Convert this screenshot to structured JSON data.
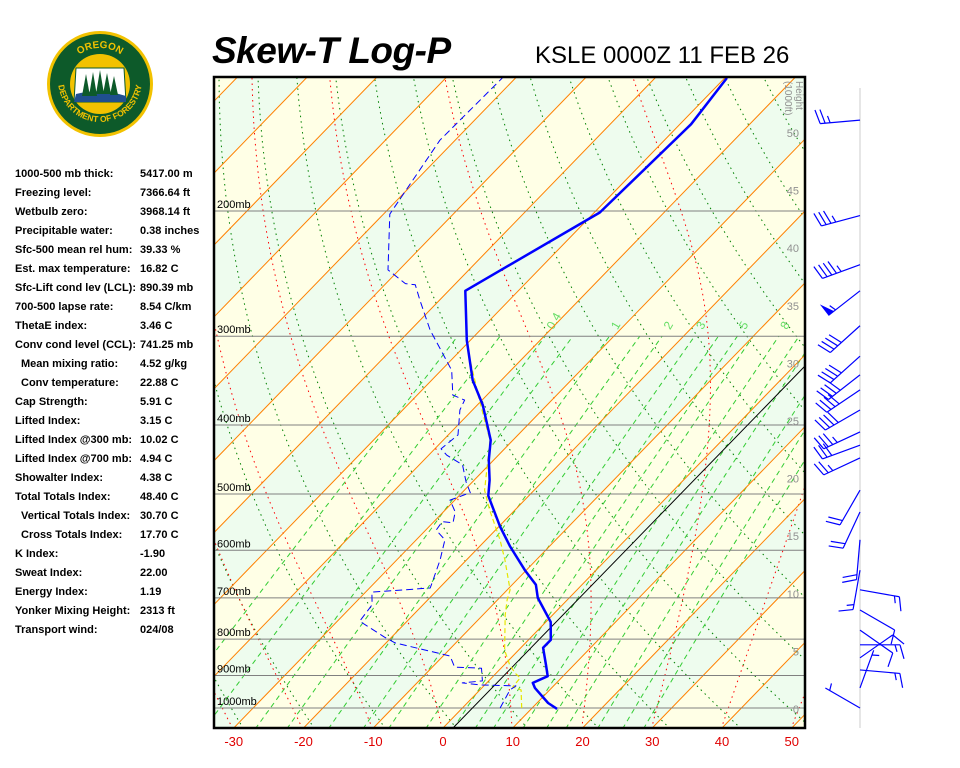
{
  "header": {
    "title": "Skew-T Log-P",
    "subtitle": "KSLE 0000Z 11 FEB 26"
  },
  "logo": {
    "top_text": "OREGON",
    "bottom_text": "DEPARTMENT OF FORESTRY",
    "colors": {
      "ring": "#f2c200",
      "field": "#0d5a2a",
      "sky": "#ffffff",
      "water": "#1f4f8f"
    }
  },
  "stats": [
    {
      "label": "1000-500 mb thick:",
      "value": "5417.00 m"
    },
    {
      "label": "Freezing level:",
      "value": "7366.64 ft"
    },
    {
      "label": "Wetbulb zero:",
      "value": "3968.14 ft"
    },
    {
      "label": "Precipitable water:",
      "value": "0.38 inches"
    },
    {
      "label": "Sfc-500 mean rel hum:",
      "value": "39.33 %"
    },
    {
      "label": "Est. max temperature:",
      "value": "16.82 C"
    },
    {
      "label": "Sfc-Lift cond lev (LCL):",
      "value": "890.39 mb"
    },
    {
      "label": "700-500 lapse rate:",
      "value": "8.54 C/km"
    },
    {
      "label": "ThetaE index:",
      "value": "3.46 C"
    },
    {
      "label": "Conv cond level (CCL):",
      "value": "741.25 mb"
    },
    {
      "label": "Mean mixing ratio:",
      "value": "4.52 g/kg",
      "sub": true
    },
    {
      "label": "Conv temperature:",
      "value": "22.88 C",
      "sub": true
    },
    {
      "label": "Cap Strength:",
      "value": "5.91 C"
    },
    {
      "label": "Lifted Index:",
      "value": "3.15 C"
    },
    {
      "label": "Lifted Index @300 mb:",
      "value": "10.02 C"
    },
    {
      "label": "Lifted Index @700 mb:",
      "value": "4.94 C"
    },
    {
      "label": "Showalter Index:",
      "value": "4.38 C"
    },
    {
      "label": "Total Totals Index:",
      "value": "48.40 C"
    },
    {
      "label": "Vertical Totals Index:",
      "value": "30.70 C",
      "sub": true
    },
    {
      "label": "Cross Totals Index:",
      "value": "17.70 C",
      "sub": true
    },
    {
      "label": "K Index:",
      "value": "-1.90"
    },
    {
      "label": "Sweat Index:",
      "value": "22.00"
    },
    {
      "label": "Energy Index:",
      "value": "1.19"
    },
    {
      "label": "Yonker Mixing Height:",
      "value": "2313 ft"
    },
    {
      "label": "Transport wind:",
      "value": "024/08"
    }
  ],
  "chart_data": {
    "type": "skew-t log-p",
    "xlabel": "",
    "ylabel": "",
    "x_ticks": [
      -30,
      -20,
      -10,
      0,
      10,
      20,
      30,
      40,
      50
    ],
    "x_tick_labels": [
      "-30",
      "-20",
      "-10",
      "0",
      "10",
      "20",
      "30",
      "40",
      "50"
    ],
    "pressure_levels": [
      200,
      300,
      400,
      500,
      600,
      700,
      800,
      900,
      1000
    ],
    "pressure_labels": [
      "200mb",
      "300mb",
      "400mb",
      "500mb",
      "600mb",
      "700mb",
      "800mb",
      "900mb",
      "1000mb"
    ],
    "pressure_range_mb": [
      1067,
      129
    ],
    "height_axis": {
      "label_line1": "Height",
      "label_line2": "(1000ft)",
      "ticks": [
        "0",
        "5",
        "10",
        "15",
        "20",
        "25",
        "30",
        "35",
        "40",
        "45",
        "50"
      ]
    },
    "mixing_ratio_labels": [
      "0.4",
      "1",
      "2",
      "3",
      "5",
      "8"
    ],
    "mixing_ratio_values": [
      0.4,
      1,
      2,
      3,
      5,
      8
    ],
    "colors": {
      "temperature": "#0000ff",
      "dewpoint": "#0000ff",
      "wetbulb": "#e6e600",
      "isotherm": "#ff8000",
      "dry_adiabat": "#008000",
      "moist_adiabat": "#ff0000",
      "mixing_ratio": "#33cc33",
      "band_a": "#ffffe6",
      "band_b": "#eefcee",
      "x_tick": "#e00000",
      "wind": "#0000ff"
    },
    "series": [
      {
        "key": "temperature",
        "style": "solid",
        "points": [
          [
            1003,
            13.7
          ],
          [
            984,
            11.6
          ],
          [
            937,
            7.6
          ],
          [
            922,
            6.6
          ],
          [
            902,
            7.8
          ],
          [
            870,
            6.0
          ],
          [
            823,
            3.2
          ],
          [
            802,
            3.2
          ],
          [
            757,
            0.7
          ],
          [
            700,
            -4.5
          ],
          [
            671,
            -6.6
          ],
          [
            640,
            -10.2
          ],
          [
            592,
            -15.7
          ],
          [
            556,
            -19.8
          ],
          [
            503,
            -25.8
          ],
          [
            478,
            -27.8
          ],
          [
            448,
            -30.7
          ],
          [
            420,
            -33.2
          ],
          [
            375,
            -39.2
          ],
          [
            346,
            -44.1
          ],
          [
            304,
            -50.5
          ],
          [
            259,
            -57.6
          ],
          [
            201,
            -49.2
          ],
          [
            151,
            -48.4
          ],
          [
            130,
            -49.7
          ]
        ]
      },
      {
        "key": "dewpoint",
        "style": "dashed",
        "points": [
          [
            1000,
            5.4
          ],
          [
            943,
            4.3
          ],
          [
            931,
            4.6
          ],
          [
            928,
            -0.7
          ],
          [
            922,
            -3.5
          ],
          [
            916,
            -0.9
          ],
          [
            879,
            -2.8
          ],
          [
            876,
            -6.8
          ],
          [
            845,
            -9.0
          ],
          [
            810,
            -18.7
          ],
          [
            795,
            -21.0
          ],
          [
            755,
            -26.8
          ],
          [
            716,
            -27.3
          ],
          [
            687,
            -29.1
          ],
          [
            678,
            -21.3
          ],
          [
            661,
            -22.0
          ],
          [
            619,
            -23.8
          ],
          [
            580,
            -25.9
          ],
          [
            562,
            -28.5
          ],
          [
            547,
            -28.8
          ],
          [
            549,
            -27.1
          ],
          [
            530,
            -28.3
          ],
          [
            510,
            -30.7
          ],
          [
            498,
            -28.8
          ],
          [
            481,
            -30.9
          ],
          [
            455,
            -33.8
          ],
          [
            441,
            -37.4
          ],
          [
            432,
            -39.1
          ],
          [
            413,
            -38.6
          ],
          [
            381,
            -41.8
          ],
          [
            369,
            -42.5
          ],
          [
            363,
            -44.9
          ],
          [
            335,
            -48.5
          ],
          [
            294,
            -57.2
          ],
          [
            267,
            -62.8
          ],
          [
            254,
            -65.6
          ],
          [
            253,
            -67.2
          ],
          [
            242,
            -71.6
          ],
          [
            202,
            -79.1
          ],
          [
            159,
            -82.2
          ],
          [
            130,
            -81.9
          ]
        ]
      },
      {
        "key": "wetbulb",
        "style": "dashed",
        "points": [
          [
            1000,
            8.5
          ],
          [
            943,
            5.9
          ],
          [
            934,
            4.3
          ],
          [
            907,
            4.1
          ],
          [
            893,
            2.7
          ],
          [
            870,
            0.8
          ],
          [
            829,
            -2.0
          ],
          [
            740,
            -6.8
          ],
          [
            705,
            -8.6
          ],
          [
            682,
            -9.6
          ],
          [
            619,
            -14.5
          ],
          [
            580,
            -18.0
          ],
          [
            527,
            -23.6
          ],
          [
            494,
            -27.1
          ],
          [
            420,
            -33.3
          ],
          [
            394,
            -36.8
          ],
          [
            364,
            -41.1
          ],
          [
            324,
            -47.3
          ]
        ]
      }
    ],
    "wind_barbs": [
      {
        "p": 149,
        "dir": 265,
        "spd": 25
      },
      {
        "p": 203,
        "dir": 255,
        "spd": 35
      },
      {
        "p": 238,
        "dir": 250,
        "spd": 45
      },
      {
        "p": 259,
        "dir": 232,
        "spd": 55
      },
      {
        "p": 290,
        "dir": 228,
        "spd": 40
      },
      {
        "p": 320,
        "dir": 228,
        "spd": 40
      },
      {
        "p": 340,
        "dir": 232,
        "spd": 40
      },
      {
        "p": 357,
        "dir": 236,
        "spd": 40
      },
      {
        "p": 381,
        "dir": 240,
        "spd": 40
      },
      {
        "p": 409,
        "dir": 245,
        "spd": 35
      },
      {
        "p": 427,
        "dir": 250,
        "spd": 30
      },
      {
        "p": 445,
        "dir": 245,
        "spd": 25
      },
      {
        "p": 494,
        "dir": 210,
        "spd": 20
      },
      {
        "p": 530,
        "dir": 205,
        "spd": 20
      },
      {
        "p": 580,
        "dir": 185,
        "spd": 20
      },
      {
        "p": 640,
        "dir": 190,
        "spd": 15
      },
      {
        "p": 682,
        "dir": 100,
        "spd": 15
      },
      {
        "p": 728,
        "dir": 120,
        "spd": 10
      },
      {
        "p": 777,
        "dir": 125,
        "spd": 10
      },
      {
        "p": 815,
        "dir": 90,
        "spd": 15
      },
      {
        "p": 850,
        "dir": 55,
        "spd": 10
      },
      {
        "p": 884,
        "dir": 95,
        "spd": 15
      },
      {
        "p": 937,
        "dir": 20,
        "spd": 5
      },
      {
        "p": 1000,
        "dir": 300,
        "spd": 5
      }
    ]
  }
}
